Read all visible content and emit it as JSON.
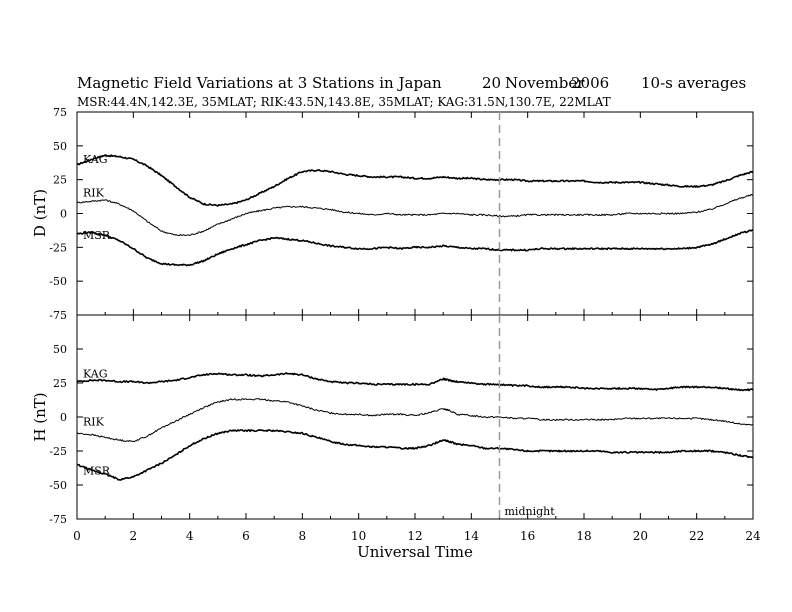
{
  "header": {
    "title": "Magnetic Field Variations at 3 Stations in Japan",
    "date_day": "20",
    "date_month": "November",
    "date_year": "2006",
    "averaging": "10-s averages",
    "stations": "MSR:44.4N,142.3E, 35MLAT;   RIK:43.5N,143.8E, 35MLAT;   KAG:31.5N,130.7E, 22MLAT"
  },
  "chart_data": [
    {
      "type": "line",
      "panel": "D",
      "ylabel": "D (nT)",
      "ylim": [
        -75,
        75
      ],
      "yticks": [
        75,
        50,
        25,
        0,
        -25,
        -50,
        -75
      ],
      "xlim": [
        0,
        24
      ],
      "xticks": [
        0,
        2,
        4,
        6,
        8,
        10,
        12,
        14,
        16,
        18,
        20,
        22,
        24
      ],
      "xlabel": "Universal Time",
      "grid": false,
      "series": [
        {
          "name": "KAG",
          "x": [
            0,
            0.5,
            1,
            1.5,
            2,
            2.5,
            3,
            3.5,
            4,
            4.5,
            5,
            5.5,
            6,
            6.5,
            7,
            7.5,
            8,
            8.5,
            9,
            9.5,
            10,
            10.5,
            11,
            11.5,
            12,
            12.5,
            13,
            13.5,
            14,
            14.5,
            15,
            15.5,
            16,
            16.5,
            17,
            17.5,
            18,
            18.5,
            19,
            19.5,
            20,
            20.5,
            21,
            21.5,
            22,
            22.5,
            23,
            23.5,
            24
          ],
          "values": [
            36,
            40,
            43,
            42,
            40,
            35,
            28,
            20,
            12,
            7,
            6,
            7,
            10,
            15,
            20,
            26,
            31,
            32,
            31,
            29,
            28,
            27,
            27,
            27,
            26,
            26,
            27,
            26,
            26,
            25,
            25,
            25,
            24,
            24,
            24,
            24,
            24,
            23,
            23,
            23,
            23,
            22,
            21,
            20,
            20,
            21,
            24,
            28,
            31
          ]
        },
        {
          "name": "RIK",
          "x": [
            0,
            0.5,
            1,
            1.5,
            2,
            2.5,
            3,
            3.5,
            4,
            4.5,
            5,
            5.5,
            6,
            6.5,
            7,
            7.5,
            8,
            8.5,
            9,
            9.5,
            10,
            10.5,
            11,
            11.5,
            12,
            12.5,
            13,
            13.5,
            14,
            14.5,
            15,
            15.5,
            16,
            16.5,
            17,
            17.5,
            18,
            18.5,
            19,
            19.5,
            20,
            20.5,
            21,
            21.5,
            22,
            22.5,
            23,
            23.5,
            24
          ],
          "values": [
            8,
            9,
            10,
            7,
            2,
            -6,
            -13,
            -16,
            -16,
            -13,
            -8,
            -4,
            0,
            2,
            4,
            5,
            5,
            4,
            3,
            1,
            0,
            -1,
            0,
            -1,
            -1,
            -1,
            0,
            0,
            -1,
            -1,
            -2,
            -2,
            -1,
            -1,
            -1,
            -1,
            -1,
            -1,
            -1,
            0,
            0,
            0,
            0,
            0,
            1,
            3,
            7,
            11,
            14
          ]
        },
        {
          "name": "MSR",
          "x": [
            0,
            0.5,
            1,
            1.5,
            2,
            2.5,
            3,
            3.5,
            4,
            4.5,
            5,
            5.5,
            6,
            6.5,
            7,
            7.5,
            8,
            8.5,
            9,
            9.5,
            10,
            10.5,
            11,
            11.5,
            12,
            12.5,
            13,
            13.5,
            14,
            14.5,
            15,
            15.5,
            16,
            16.5,
            17,
            17.5,
            18,
            18.5,
            19,
            19.5,
            20,
            20.5,
            21,
            21.5,
            22,
            22.5,
            23,
            23.5,
            24
          ],
          "values": [
            -15,
            -14,
            -16,
            -20,
            -26,
            -33,
            -37,
            -38,
            -38,
            -35,
            -30,
            -26,
            -23,
            -20,
            -18,
            -19,
            -20,
            -22,
            -24,
            -25,
            -26,
            -26,
            -25,
            -26,
            -25,
            -25,
            -24,
            -25,
            -26,
            -26,
            -27,
            -27,
            -27,
            -26,
            -26,
            -26,
            -26,
            -26,
            -26,
            -26,
            -26,
            -26,
            -26,
            -26,
            -25,
            -23,
            -19,
            -15,
            -12
          ]
        }
      ],
      "annotations": [
        {
          "x": 15,
          "style": "dashed vertical"
        }
      ]
    },
    {
      "type": "line",
      "panel": "H",
      "ylabel": "H (nT)",
      "ylim": [
        -75,
        75
      ],
      "yticks": [
        75,
        50,
        25,
        0,
        -25,
        -50,
        -75
      ],
      "xlim": [
        0,
        24
      ],
      "xticks": [
        0,
        2,
        4,
        6,
        8,
        10,
        12,
        14,
        16,
        18,
        20,
        22,
        24
      ],
      "xlabel": "Universal Time",
      "grid": false,
      "series": [
        {
          "name": "KAG",
          "x": [
            0,
            0.5,
            1,
            1.5,
            2,
            2.5,
            3,
            3.5,
            4,
            4.5,
            5,
            5.5,
            6,
            6.5,
            7,
            7.5,
            8,
            8.5,
            9,
            9.5,
            10,
            10.5,
            11,
            11.5,
            12,
            12.5,
            13,
            13.2,
            13.5,
            14,
            14.5,
            15,
            15.5,
            16,
            16.5,
            17,
            17.5,
            18,
            18.5,
            19,
            19.5,
            20,
            20.5,
            21,
            21.5,
            22,
            22.5,
            23,
            23.5,
            24
          ],
          "values": [
            26,
            27,
            27,
            26,
            26,
            25,
            26,
            27,
            29,
            31,
            32,
            31,
            31,
            30,
            31,
            32,
            31,
            28,
            26,
            25,
            25,
            24,
            24,
            24,
            24,
            24,
            28,
            27,
            26,
            25,
            24,
            24,
            23,
            23,
            22,
            22,
            22,
            21,
            21,
            21,
            21,
            21,
            20,
            21,
            22,
            22,
            22,
            21,
            20,
            20
          ]
        },
        {
          "name": "RIK",
          "x": [
            0,
            0.5,
            1,
            1.5,
            2,
            2.5,
            3,
            3.5,
            4,
            4.5,
            5,
            5.5,
            6,
            6.5,
            7,
            7.5,
            8,
            8.5,
            9,
            9.5,
            10,
            10.5,
            11,
            11.5,
            12,
            12.5,
            13,
            13.2,
            13.5,
            14,
            14.5,
            15,
            15.5,
            16,
            16.5,
            17,
            17.5,
            18,
            18.5,
            19,
            19.5,
            20,
            20.5,
            21,
            21.5,
            22,
            22.5,
            23,
            23.5,
            24
          ],
          "values": [
            -12,
            -13,
            -15,
            -17,
            -18,
            -14,
            -8,
            -3,
            2,
            7,
            11,
            13,
            13,
            13,
            12,
            11,
            8,
            5,
            3,
            2,
            2,
            1,
            2,
            2,
            1,
            3,
            6,
            5,
            2,
            1,
            0,
            0,
            -1,
            -1,
            -2,
            -2,
            -2,
            -2,
            -2,
            -2,
            -1,
            -1,
            -1,
            -1,
            -1,
            -1,
            -2,
            -3,
            -5,
            -6
          ]
        },
        {
          "name": "MSR",
          "x": [
            0,
            0.5,
            1,
            1.5,
            2,
            2.5,
            3,
            3.5,
            4,
            4.5,
            5,
            5.5,
            6,
            6.5,
            7,
            7.5,
            8,
            8.5,
            9,
            9.5,
            10,
            10.5,
            11,
            11.5,
            12,
            12.5,
            13,
            13.2,
            13.5,
            14,
            14.5,
            15,
            15.5,
            16,
            16.5,
            17,
            17.5,
            18,
            18.5,
            19,
            19.5,
            20,
            20.5,
            21,
            21.5,
            22,
            22.5,
            23,
            23.5,
            24
          ],
          "values": [
            -35,
            -39,
            -42,
            -46,
            -44,
            -39,
            -34,
            -28,
            -21,
            -16,
            -12,
            -10,
            -10,
            -10,
            -10,
            -11,
            -12,
            -15,
            -18,
            -20,
            -21,
            -22,
            -22,
            -23,
            -23,
            -21,
            -17,
            -18,
            -20,
            -21,
            -23,
            -23,
            -24,
            -25,
            -25,
            -25,
            -25,
            -25,
            -25,
            -26,
            -26,
            -26,
            -26,
            -26,
            -25,
            -25,
            -25,
            -26,
            -28,
            -30
          ]
        }
      ],
      "annotations": [
        {
          "x": 15,
          "label": "midnight",
          "style": "dashed vertical"
        }
      ]
    }
  ]
}
